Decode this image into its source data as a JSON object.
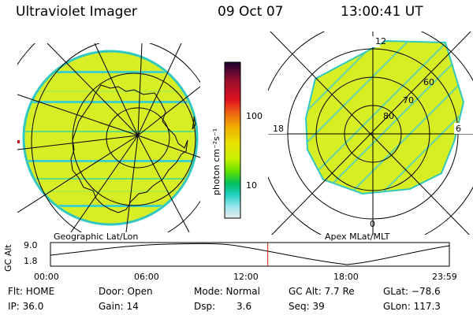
{
  "header": {
    "title": "Ultraviolet Imager",
    "date": "09 Oct 07",
    "time": "13:00:41 UT"
  },
  "colorbar": {
    "unit_label": "photon cm⁻²s⁻¹",
    "ticks": [
      "100",
      "10"
    ],
    "colors": [
      "#1a0030",
      "#9a1030",
      "#e01020",
      "#f07010",
      "#f0b000",
      "#e8e000",
      "#c8f000",
      "#60e000",
      "#00c060",
      "#20d0c0",
      "#a0e8f0",
      "#e8e8ee"
    ]
  },
  "left_map": {
    "caption": "Geographic Lat/Lon"
  },
  "right_map": {
    "caption": "Apex MLat/MLT",
    "mlt_labels": {
      "top": "12",
      "left": "18",
      "right": "6",
      "bottom": "0"
    },
    "lat_labels": [
      "60",
      "70",
      "80"
    ]
  },
  "altitude_plot": {
    "ylabel": "GC Alt",
    "yticks": [
      "9.0",
      "1.8"
    ],
    "xticks": [
      "00:00",
      "06:00",
      "12:00",
      "18:00",
      "23:59"
    ],
    "current_time_fraction": 0.5448
  },
  "info": {
    "flt": "Flt: HOME",
    "ip": "IP: 36.0",
    "door": "Door: Open",
    "gain": "Gain: 14",
    "mode": "Mode: Normal",
    "dsp_label": "Dsp:",
    "dsp_value": "3.6",
    "gc_alt": "GC Alt: 7.7 Re",
    "seq": "Seq: 39",
    "glat": "GLat: −78.6",
    "glon": "GLon: 117.3"
  }
}
